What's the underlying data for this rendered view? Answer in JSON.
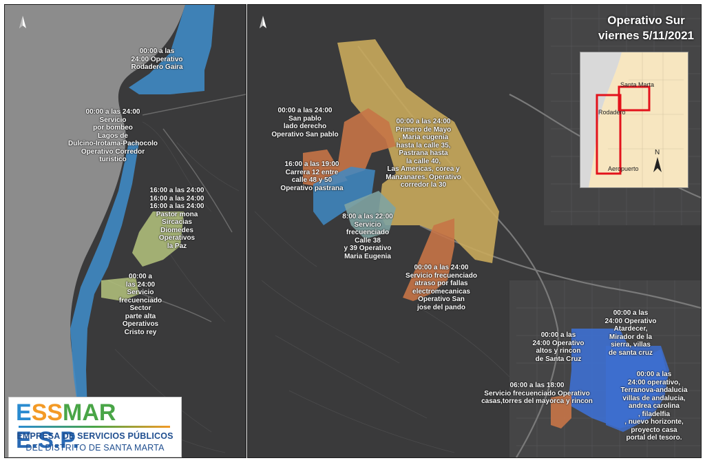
{
  "title": {
    "line1": "Operativo Sur",
    "line2": "viernes 5/11/2021"
  },
  "inset_map": {
    "labels": {
      "santa_marta": "Santa Marta",
      "rodadero": "Rodadero",
      "aeropuerto": "Aeropuerto",
      "north": "N"
    }
  },
  "north_arrow_label": "N",
  "colors": {
    "blue_zone": "#3f8ac4",
    "dark_blue_zone": "#3d6fd0",
    "yellow_zone": "#c9aa5c",
    "orange_zone": "#c67447",
    "green_zone": "#aebc7a",
    "teal_zone": "#7fa3a2",
    "basemap": "#3a3a3b",
    "sea": "#8c8c8c",
    "inset_land": "#f7e6c0",
    "inset_frame": "#e3121b"
  },
  "left_labels": {
    "rodadero": "00:00 a las\n24:00 Operativo\nRodadero Gaira",
    "bombeo": "00:00 a las 24:00\nServicio\npor bombeo\nLagos de\nDulcino-Irotama-Pachocolo\nOperativo Corredor\nturistico",
    "paz": "16:00 a las 24:00\n16:00 a las 24:00\n16:00 a las 24:00\nPastor mona\nSircacias\nDiomedes\nOperativos\nla Paz",
    "cristo_rey": "00:00 a\nlas 24:00\nServicio\nfrecuenciado\nSector\nparte alta\nOperativos\nCristo rey"
  },
  "right_labels": {
    "san_pablo": "00:00 a las 24:00\nSan pablo\nlado derecho\nOperativo San pablo",
    "pastrana": "16:00 a las 19:00\nCarrera 12 entre\ncalle 48 y 50\nOperativo pastrana",
    "primero_mayo": "00:00 a las 24:00\nPrimero de Mayo\n, Maria eugenia\nhasta la calle 35,\nPastrana hasta\nla calle 40,\nLas Americas, corea y\nManzanares. Operativo\ncorredor la 30",
    "maria_eugenia": "8:00 a las 22:00\nServicio\nfrecuenciado\nCalle 38\ny 39 Operativo\nMaria Eugenia",
    "san_jose": "00:00 a las 24:00\nServicio frecuenciado\natraso por fallas\nelectromecanicas\nOperativo San\njose del pando",
    "altos_rincon": "00:00 a las\n24:00 Operativo\naltos y rincon\nde Santa Cruz",
    "atardecer": "00:00 a las\n24:00 Operativo\nAtardecer,\nMirador de la\nsierra, villas\nde santa cruz",
    "mayorca": "06:00 a las 18:00\nServicio frecuenciado Operativo\ncasas,torres del mayorca y rincon",
    "terranova": "00:00 a las\n24:00 operativo,\nTerranova-andalucia\nvillas de andalucia,\nandrea carolina\n, filadelfia\n, nuevo horizonte,\nproyecto casa\nportal del tesoro."
  },
  "logo": {
    "part1": "E",
    "part2": "SS",
    "part3": "MAR",
    "part4": " E.S.P.",
    "line1": "EMPRESA DE SERVICIOS PÚBLICOS",
    "line2": "DEL DISTRITO DE SANTA MARTA"
  }
}
